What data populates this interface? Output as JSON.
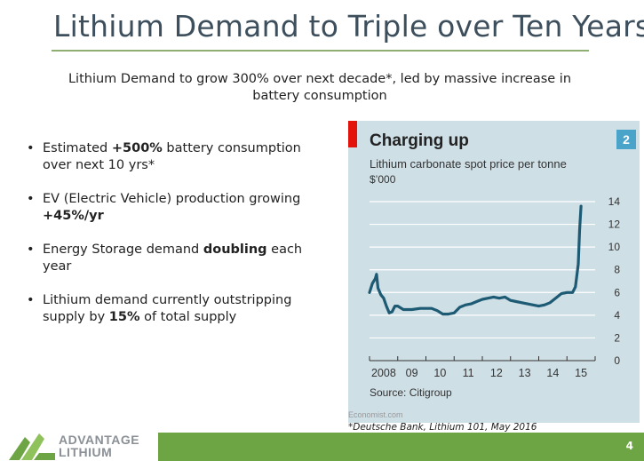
{
  "title": "Lithium Demand to Triple over Ten Years*",
  "subtitle": "Lithium Demand to grow 300% over next decade*, led by massive increase in battery consumption",
  "bullets": [
    {
      "pre": "Estimated ",
      "bold": "+500%",
      "post": " battery consumption over next 10 yrs*"
    },
    {
      "pre": "EV (Electric Vehicle) production growing ",
      "bold": "+45%/yr",
      "post": ""
    },
    {
      "pre": "Energy Storage demand ",
      "bold": "doubling",
      "post": " each year"
    },
    {
      "pre": "Lithium demand currently outstripping supply by ",
      "bold": "15%",
      "post": " of total supply"
    }
  ],
  "chart_data": {
    "type": "line",
    "title": "Charging up",
    "subtitle": "Lithium carbonate spot price per tonne",
    "unit": "$’000",
    "badge": "2",
    "source": "Source: Citigroup",
    "credit": "Economist.com",
    "xlim": [
      2008,
      2016
    ],
    "ylim": [
      0,
      14
    ],
    "y_ticks": [
      0,
      2,
      4,
      6,
      8,
      10,
      12,
      14
    ],
    "x_tick_labels": [
      "2008",
      "09",
      "10",
      "11",
      "12",
      "13",
      "14",
      "15"
    ],
    "grid": true,
    "color": "#1d5a73",
    "series": [
      {
        "x": [
          2008.0,
          2008.1,
          2008.2,
          2008.25,
          2008.3,
          2008.4,
          2008.5,
          2008.6,
          2008.7,
          2008.8,
          2008.9,
          2009.0,
          2009.2,
          2009.5,
          2009.8,
          2010.0,
          2010.2,
          2010.4,
          2010.6,
          2010.8,
          2011.0,
          2011.2,
          2011.4,
          2011.6,
          2011.8,
          2012.0,
          2012.2,
          2012.4,
          2012.6,
          2012.8,
          2013.0,
          2013.2,
          2013.4,
          2013.6,
          2013.8,
          2014.0,
          2014.2,
          2014.4,
          2014.6,
          2014.8,
          2015.0,
          2015.2,
          2015.3,
          2015.4,
          2015.45,
          2015.5
        ],
        "y": [
          6.0,
          6.8,
          7.2,
          7.6,
          6.4,
          5.8,
          5.5,
          4.8,
          4.2,
          4.3,
          4.8,
          4.8,
          4.5,
          4.5,
          4.6,
          4.6,
          4.6,
          4.4,
          4.1,
          4.1,
          4.2,
          4.7,
          4.9,
          5.0,
          5.2,
          5.4,
          5.5,
          5.6,
          5.5,
          5.6,
          5.3,
          5.2,
          5.1,
          5.0,
          4.9,
          4.8,
          4.9,
          5.1,
          5.5,
          5.9,
          6.0,
          6.0,
          6.5,
          8.5,
          11.5,
          13.6
        ]
      }
    ]
  },
  "footnote": "*Deutsche Bank, Lithium 101, May 2016",
  "logo": {
    "line1": "ADVANTAGE",
    "line2": "LITHIUM"
  },
  "page_number": "4"
}
